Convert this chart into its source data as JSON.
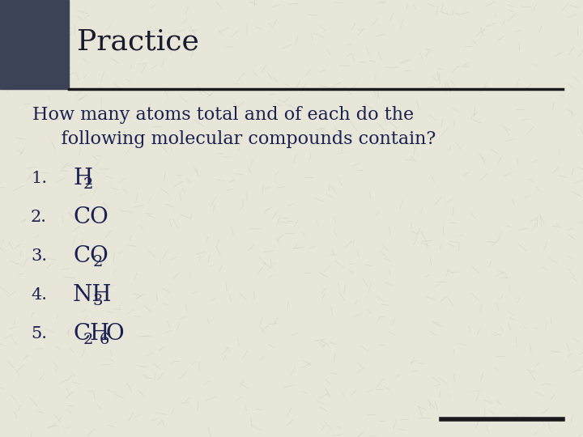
{
  "title": "Practice",
  "bg_color": "#e8e6d9",
  "title_bar_color": "#3d4357",
  "title_color": "#1a1a2e",
  "body_text_color": "#1a2050",
  "header_line_color": "#1a1a1e",
  "intro_line1": "How many atoms total and of each do the",
  "intro_line2": "     following molecular compounds contain?",
  "items": [
    {
      "num": "1.",
      "parts": [
        {
          "text": "H",
          "sub": "2"
        }
      ]
    },
    {
      "num": "2.",
      "parts": [
        {
          "text": "CO",
          "sub": ""
        }
      ]
    },
    {
      "num": "3.",
      "parts": [
        {
          "text": "CO",
          "sub": "2"
        }
      ]
    },
    {
      "num": "4.",
      "parts": [
        {
          "text": "NH",
          "sub": "3"
        }
      ]
    },
    {
      "num": "5.",
      "parts": [
        {
          "text": "C",
          "sub": "2"
        },
        {
          "text": "H",
          "sub": "6"
        },
        {
          "text": "O",
          "sub": ""
        }
      ]
    }
  ],
  "footer_bar_color": "#1a1a1e",
  "title_fontsize": 26,
  "body_fontsize": 16,
  "item_fontsize": 20,
  "sub_fontsize": 14,
  "num_fontsize": 15
}
